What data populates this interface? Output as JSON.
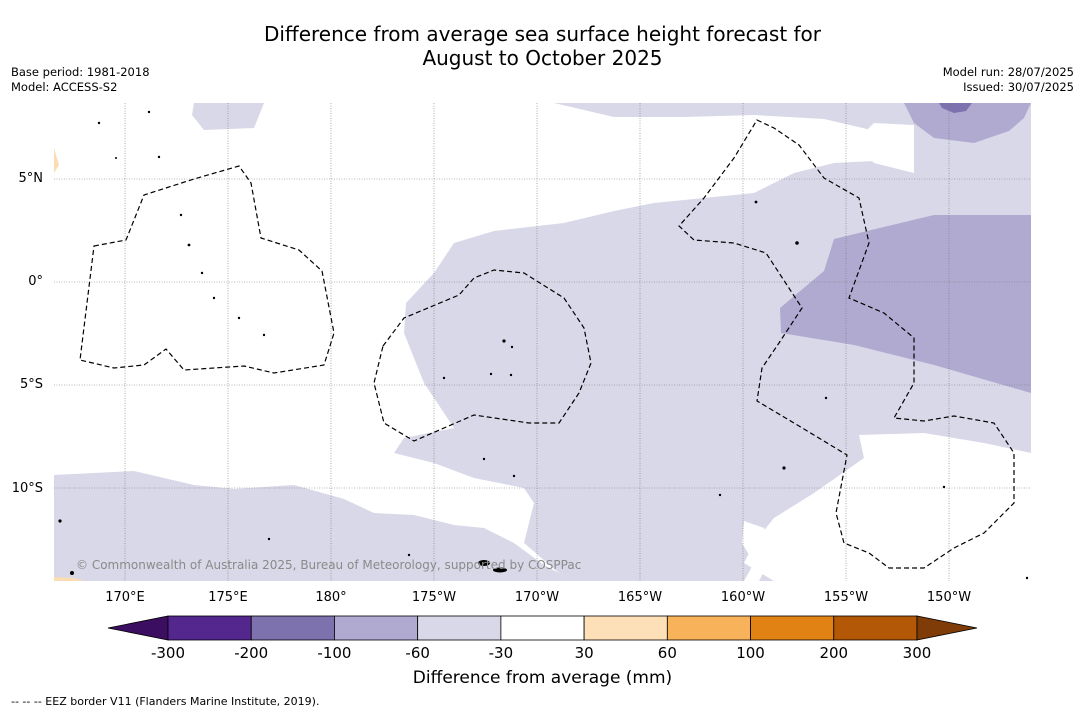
{
  "title": {
    "line1": "Difference from average sea surface height forecast for",
    "line2": "August to October 2025"
  },
  "meta": {
    "base_period": "Base period: 1981-2018",
    "model": "Model: ACCESS-S2",
    "model_run": "Model run: 28/07/2025",
    "issued": "Issued: 30/07/2025"
  },
  "map": {
    "lat_labels": [
      "5°N",
      "0°",
      "5°S",
      "10°S"
    ],
    "lon_labels": [
      "170°E",
      "175°E",
      "180°",
      "175°W",
      "170°W",
      "165°W",
      "160°W",
      "155°W",
      "150°W"
    ],
    "copyright": "© Commonwealth of Australia 2025, Bureau of Meteorology, supported by COSPPac",
    "colors": {
      "band_neg30_60": "#d8d8e8",
      "band_neg60_100": "#b0aad0",
      "band_neg100_200": "#7e72ae",
      "land_positive": "#fbdcb4"
    }
  },
  "colorbar": {
    "ticks": [
      "-300",
      "-200",
      "-100",
      "-60",
      "-30",
      "30",
      "60",
      "100",
      "200",
      "300"
    ],
    "colors": [
      "#3c0e62",
      "#54278f",
      "#7e72ae",
      "#b0aad0",
      "#d8d8e8",
      "#ffffff",
      "#fde0b8",
      "#f8b35a",
      "#e08214",
      "#b35806",
      "#7f3b08"
    ],
    "label": "Difference from average (mm)"
  },
  "legend_note": "--  --  -- EEZ border V11 (Flanders Marine Institute, 2019)."
}
